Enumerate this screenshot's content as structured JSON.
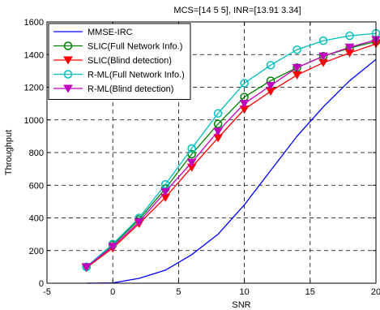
{
  "chart_data": {
    "type": "line",
    "title": "MCS=[14 5 5], INR=[13.91 3.34]",
    "xlabel": "SNR",
    "ylabel": "Throughput",
    "xlim": [
      -5,
      20
    ],
    "ylim": [
      0,
      1600
    ],
    "xticks": [
      -5,
      0,
      5,
      10,
      15,
      20
    ],
    "yticks": [
      0,
      200,
      400,
      600,
      800,
      1000,
      1200,
      1400,
      1600
    ],
    "xtick_labels": [
      "-5",
      "0",
      "5",
      "10",
      "15",
      "20"
    ],
    "ytick_labels": [
      "0",
      "200",
      "400",
      "600",
      "800",
      "1000",
      "1200",
      "1400",
      "1600"
    ],
    "grid": true,
    "grid_style": "dashed",
    "legend_position": "top-left",
    "series": [
      {
        "name": "MMSE-IRC",
        "color": "#0000ff",
        "marker": "none",
        "x": [
          -2,
          0,
          2,
          4,
          6,
          8,
          10,
          12,
          14,
          16,
          18,
          20
        ],
        "y": [
          0,
          2,
          30,
          80,
          175,
          300,
          480,
          690,
          900,
          1080,
          1240,
          1370
        ]
      },
      {
        "name": "SLIC(Full Network Info.)",
        "color": "#008000",
        "marker": "circle",
        "x": [
          -2,
          0,
          2,
          4,
          6,
          8,
          10,
          12,
          14,
          16,
          18,
          20
        ],
        "y": [
          100,
          235,
          390,
          580,
          790,
          975,
          1140,
          1240,
          1320,
          1390,
          1440,
          1480
        ]
      },
      {
        "name": "SLIC(Blind detection)",
        "color": "#ff0000",
        "marker": "triangle-down",
        "x": [
          -2,
          0,
          2,
          4,
          6,
          8,
          10,
          12,
          14,
          16,
          18,
          20
        ],
        "y": [
          95,
          215,
          365,
          525,
          710,
          890,
          1065,
          1175,
          1275,
          1350,
          1410,
          1465
        ]
      },
      {
        "name": "R-ML(Full Network Info.)",
        "color": "#00bfbf",
        "marker": "circle",
        "x": [
          -2,
          0,
          2,
          4,
          6,
          8,
          10,
          12,
          14,
          16,
          18,
          20
        ],
        "y": [
          100,
          240,
          400,
          605,
          825,
          1040,
          1225,
          1335,
          1430,
          1485,
          1515,
          1530
        ]
      },
      {
        "name": "R-ML(Blind detection)",
        "color": "#bf00bf",
        "marker": "triangle-down",
        "x": [
          -2,
          0,
          2,
          4,
          6,
          8,
          10,
          12,
          14,
          16,
          18,
          20
        ],
        "y": [
          100,
          225,
          375,
          560,
          740,
          930,
          1100,
          1210,
          1320,
          1390,
          1445,
          1490
        ]
      }
    ]
  }
}
